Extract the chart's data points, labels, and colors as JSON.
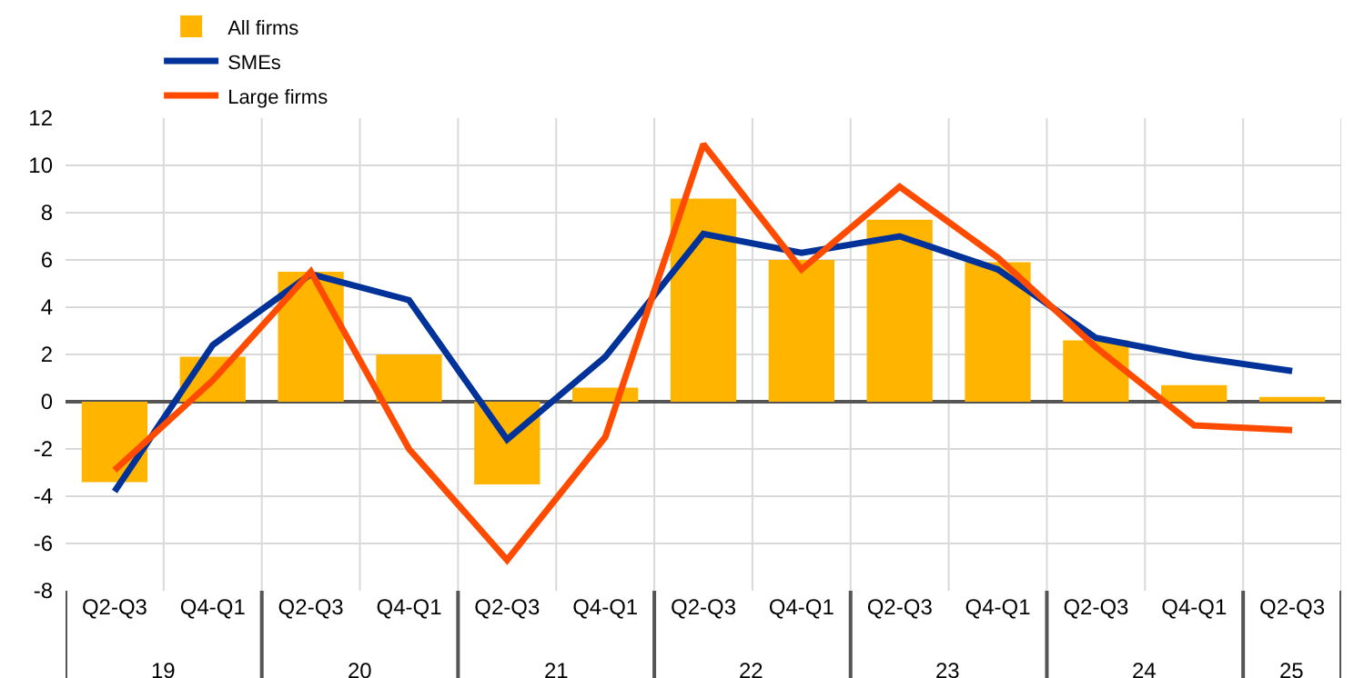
{
  "chart_data": {
    "type": "bar",
    "categories": [
      "Q2-Q3",
      "Q4-Q1",
      "Q2-Q3",
      "Q4-Q1",
      "Q2-Q3",
      "Q4-Q1",
      "Q2-Q3",
      "Q4-Q1",
      "Q2-Q3",
      "Q4-Q1",
      "Q2-Q3",
      "Q4-Q1",
      "Q2-Q3"
    ],
    "series": [
      {
        "name": "All firms",
        "color": "#ffb400",
        "values": [
          -3.4,
          1.9,
          5.5,
          2.0,
          -3.5,
          0.6,
          8.6,
          6.0,
          7.7,
          5.9,
          2.6,
          0.7,
          0.2
        ]
      },
      {
        "name": "SMEs",
        "type": "line",
        "color": "#003299",
        "values": [
          -3.8,
          2.4,
          5.4,
          4.3,
          -1.6,
          1.9,
          7.1,
          6.3,
          7.0,
          5.6,
          2.7,
          1.9,
          1.3
        ]
      },
      {
        "name": "Large firms",
        "type": "line",
        "color": "#ff4b00",
        "values": [
          -2.9,
          0.9,
          5.5,
          -2.0,
          -6.7,
          -1.5,
          10.9,
          5.6,
          9.1,
          6.1,
          2.3,
          -1.0,
          -1.2
        ]
      }
    ],
    "annotations": [
      "19",
      "20",
      "21",
      "22",
      "23",
      "24",
      "25"
    ],
    "ylim": [
      -8,
      12
    ],
    "yticks": [
      -8,
      -6,
      -4,
      -2,
      0,
      2,
      4,
      6,
      8,
      10,
      12
    ],
    "grid": true,
    "legend": "top left",
    "marker": "none",
    "line_style": "solid"
  }
}
